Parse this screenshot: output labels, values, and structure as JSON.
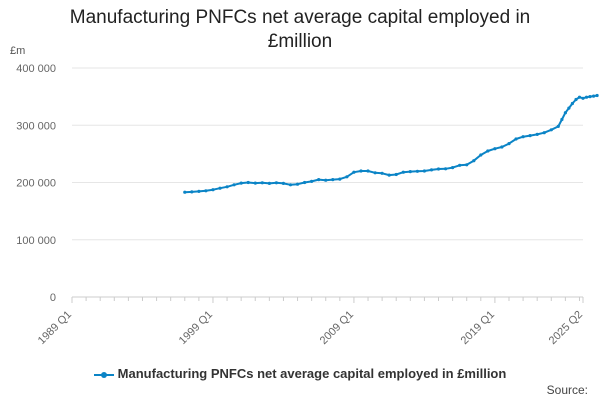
{
  "title_lines": [
    "Manufacturing PNFCs net average capital employed in",
    "£million"
  ],
  "unit_label": "£m",
  "legend_label": "Manufacturing PNFCs net average capital employed in £million",
  "source_label": "Source:",
  "colors": {
    "series": "#0b84c6",
    "grid": "#e6e6e6",
    "axis_text": "#666666"
  },
  "chart_data": {
    "type": "line",
    "title": "Manufacturing PNFCs net average capital employed in £million",
    "ylabel": "£m",
    "ylim": [
      0,
      400000
    ],
    "yticks": [
      0,
      100000,
      200000,
      300000,
      400000
    ],
    "ytick_labels": [
      "0",
      "100 000",
      "200 000",
      "300 000",
      "400 000"
    ],
    "xlim": [
      1989.0,
      2025.25
    ],
    "xticks": [
      1989.0,
      1999.0,
      2009.0,
      2019.0,
      2025.25
    ],
    "xtick_labels": [
      "1989 Q1",
      "1999 Q1",
      "2009 Q1",
      "2019 Q1",
      "2025 Q2"
    ],
    "grid": true,
    "legend": "bottom",
    "series": [
      {
        "name": "Manufacturing PNFCs net average capital employed in £million",
        "points": [
          [
            1997.0,
            183000
          ],
          [
            1997.5,
            183500
          ],
          [
            1998.0,
            184500
          ],
          [
            1998.5,
            185500
          ],
          [
            1999.0,
            187500
          ],
          [
            1999.5,
            190000
          ],
          [
            2000.0,
            192500
          ],
          [
            2000.5,
            196000
          ],
          [
            2001.0,
            199000
          ],
          [
            2001.5,
            200000
          ],
          [
            2002.0,
            199000
          ],
          [
            2002.5,
            199500
          ],
          [
            2003.0,
            198500
          ],
          [
            2003.5,
            199500
          ],
          [
            2004.0,
            198500
          ],
          [
            2004.5,
            196000
          ],
          [
            2005.0,
            197000
          ],
          [
            2005.5,
            200000
          ],
          [
            2006.0,
            202000
          ],
          [
            2006.5,
            205000
          ],
          [
            2007.0,
            204000
          ],
          [
            2007.5,
            205000
          ],
          [
            2008.0,
            206000
          ],
          [
            2008.5,
            210000
          ],
          [
            2009.0,
            218000
          ],
          [
            2009.5,
            220000
          ],
          [
            2010.0,
            220000
          ],
          [
            2010.5,
            217000
          ],
          [
            2011.0,
            216000
          ],
          [
            2011.5,
            213000
          ],
          [
            2012.0,
            214000
          ],
          [
            2012.5,
            218000
          ],
          [
            2013.0,
            219000
          ],
          [
            2013.5,
            219500
          ],
          [
            2014.0,
            220000
          ],
          [
            2014.5,
            222000
          ],
          [
            2015.0,
            223500
          ],
          [
            2015.5,
            224000
          ],
          [
            2016.0,
            226000
          ],
          [
            2016.5,
            230000
          ],
          [
            2017.0,
            231000
          ],
          [
            2017.5,
            238000
          ],
          [
            2018.0,
            248000
          ],
          [
            2018.5,
            255000
          ],
          [
            2019.0,
            259000
          ],
          [
            2019.5,
            262000
          ],
          [
            2020.0,
            268000
          ],
          [
            2020.5,
            276000
          ],
          [
            2021.0,
            280000
          ],
          [
            2021.5,
            282000
          ],
          [
            2022.0,
            284000
          ],
          [
            2022.5,
            287000
          ],
          [
            2023.0,
            292000
          ],
          [
            2023.5,
            298000
          ],
          [
            2023.75,
            310000
          ],
          [
            2024.0,
            322000
          ],
          [
            2024.25,
            330000
          ],
          [
            2024.5,
            338000
          ],
          [
            2024.75,
            345000
          ],
          [
            2025.0,
            349000
          ],
          [
            2025.25,
            347000
          ],
          [
            2025.5,
            349000
          ],
          [
            2025.75,
            350000
          ],
          [
            2026.0,
            351000
          ],
          [
            2026.25,
            352000
          ]
        ]
      }
    ]
  }
}
